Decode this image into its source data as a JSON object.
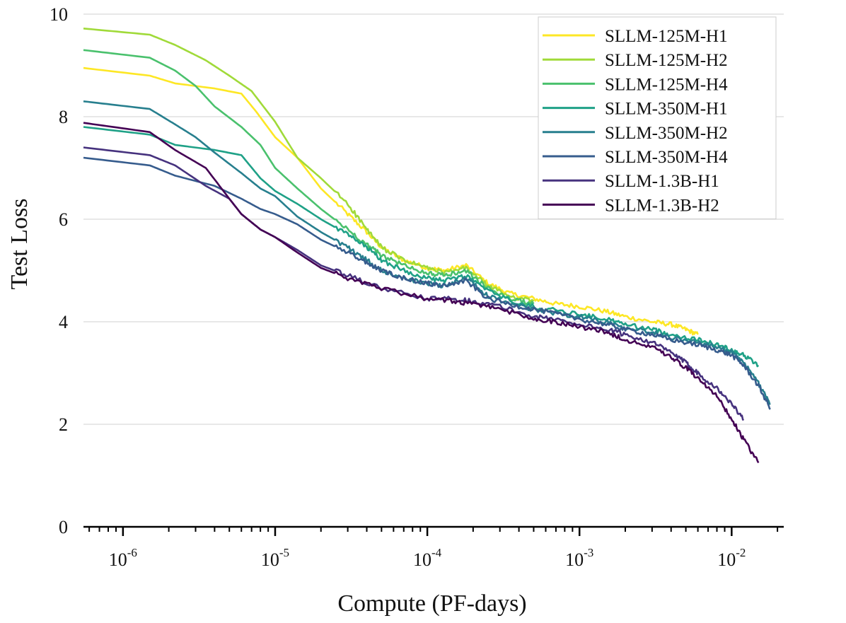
{
  "chart_data": {
    "type": "line",
    "title": "",
    "xlabel": "Compute (PF-days)",
    "ylabel": "Test Loss",
    "xscale": "log",
    "xlim": [
      5.5e-07,
      0.022
    ],
    "ylim": [
      0,
      10
    ],
    "xticks": [
      {
        "value": 1e-06,
        "base": "10",
        "exp": "-6"
      },
      {
        "value": 1e-05,
        "base": "10",
        "exp": "-5"
      },
      {
        "value": 0.0001,
        "base": "10",
        "exp": "-4"
      },
      {
        "value": 0.001,
        "base": "10",
        "exp": "-3"
      },
      {
        "value": 0.01,
        "base": "10",
        "exp": "-2"
      }
    ],
    "yticks": [
      {
        "value": 0,
        "label": "0"
      },
      {
        "value": 2,
        "label": "2"
      },
      {
        "value": 4,
        "label": "4"
      },
      {
        "value": 6,
        "label": "6"
      },
      {
        "value": 8,
        "label": "8"
      },
      {
        "value": 10,
        "label": "10"
      }
    ],
    "grid": "horizontal",
    "legend_position": "top-right",
    "series": [
      {
        "name": "SLLM-125M-H1",
        "color": "#fde725",
        "x": [
          5.5e-07,
          1.5e-06,
          2.2e-06,
          4e-06,
          6e-06,
          7.5e-06,
          1e-05,
          1.4e-05,
          2e-05,
          3e-05,
          4e-05,
          5e-05,
          7e-05,
          0.0001,
          0.00013,
          0.00018,
          0.00025,
          0.00035,
          0.0005,
          0.0007,
          0.001,
          0.0015,
          0.002,
          0.003,
          0.004,
          0.005,
          0.006
        ],
        "y": [
          8.95,
          8.8,
          8.65,
          8.55,
          8.45,
          8.1,
          7.6,
          7.2,
          6.6,
          6.1,
          5.75,
          5.45,
          5.2,
          5.05,
          5.0,
          5.1,
          4.75,
          4.55,
          4.45,
          4.35,
          4.3,
          4.2,
          4.1,
          4.0,
          3.95,
          3.85,
          3.75
        ]
      },
      {
        "name": "SLLM-125M-H2",
        "color": "#a0da39",
        "x": [
          5.5e-07,
          1.5e-06,
          2.2e-06,
          3.5e-06,
          5e-06,
          7e-06,
          1e-05,
          1.4e-05,
          2e-05,
          3e-05,
          4e-05,
          5e-05,
          7e-05,
          0.0001,
          0.00013,
          0.00018,
          0.00025,
          0.00035,
          0.0005
        ],
        "y": [
          9.72,
          9.6,
          9.4,
          9.1,
          8.8,
          8.5,
          7.9,
          7.2,
          6.8,
          6.3,
          5.8,
          5.45,
          5.2,
          5.05,
          4.95,
          5.05,
          4.7,
          4.5,
          4.4
        ]
      },
      {
        "name": "SLLM-125M-H4",
        "color": "#4ac16d",
        "x": [
          5.5e-07,
          1.5e-06,
          2.2e-06,
          3e-06,
          4e-06,
          6e-06,
          8e-06,
          1e-05,
          1.4e-05,
          2e-05,
          3e-05,
          4e-05,
          5e-05,
          7e-05,
          0.0001,
          0.00013,
          0.00018,
          0.00025,
          0.00035,
          0.0005
        ],
        "y": [
          9.3,
          9.15,
          8.9,
          8.6,
          8.2,
          7.8,
          7.45,
          7.0,
          6.6,
          6.2,
          5.8,
          5.5,
          5.3,
          5.1,
          4.95,
          4.9,
          5.0,
          4.65,
          4.45,
          4.35
        ]
      },
      {
        "name": "SLLM-350M-H1",
        "color": "#1fa187",
        "x": [
          5.5e-07,
          1.5e-06,
          2.2e-06,
          4e-06,
          6e-06,
          8e-06,
          1e-05,
          1.4e-05,
          2e-05,
          3e-05,
          4e-05,
          5e-05,
          7e-05,
          0.0001,
          0.00013,
          0.00018,
          0.00025,
          0.0004,
          0.0006,
          0.001,
          0.0015,
          0.002,
          0.003,
          0.004,
          0.006,
          0.008,
          0.01,
          0.012,
          0.015
        ],
        "y": [
          7.8,
          7.65,
          7.45,
          7.35,
          7.25,
          6.8,
          6.55,
          6.3,
          6.0,
          5.7,
          5.45,
          5.2,
          5.0,
          4.85,
          4.8,
          4.9,
          4.6,
          4.35,
          4.25,
          4.15,
          4.05,
          3.95,
          3.85,
          3.75,
          3.65,
          3.55,
          3.45,
          3.35,
          3.15
        ]
      },
      {
        "name": "SLLM-350M-H2",
        "color": "#277f8e",
        "x": [
          5.5e-07,
          1.5e-06,
          2.2e-06,
          3e-06,
          4e-06,
          6e-06,
          8e-06,
          1e-05,
          1.4e-05,
          2e-05,
          3e-05,
          4e-05,
          5e-05,
          7e-05,
          0.0001,
          0.00013,
          0.00018,
          0.00025,
          0.0004,
          0.0006,
          0.001,
          0.0015,
          0.002,
          0.003,
          0.004,
          0.006,
          0.008,
          0.01,
          0.012,
          0.015,
          0.018
        ],
        "y": [
          8.3,
          8.15,
          7.85,
          7.6,
          7.3,
          6.9,
          6.6,
          6.45,
          6.05,
          5.75,
          5.45,
          5.2,
          5.0,
          4.85,
          4.75,
          4.7,
          4.85,
          4.5,
          4.3,
          4.2,
          4.1,
          4.0,
          3.9,
          3.8,
          3.7,
          3.6,
          3.5,
          3.4,
          3.2,
          2.8,
          2.4
        ]
      },
      {
        "name": "SLLM-350M-H4",
        "color": "#365c8d",
        "x": [
          5.5e-07,
          1.5e-06,
          2.2e-06,
          4e-06,
          6e-06,
          8e-06,
          1e-05,
          1.4e-05,
          2e-05,
          3e-05,
          4e-05,
          5e-05,
          7e-05,
          0.0001,
          0.00013,
          0.00018,
          0.00025,
          0.0004,
          0.0006,
          0.001,
          0.0015,
          0.002,
          0.003,
          0.004,
          0.006,
          0.008,
          0.01,
          0.012,
          0.015,
          0.018
        ],
        "y": [
          7.2,
          7.05,
          6.85,
          6.65,
          6.4,
          6.2,
          6.1,
          5.9,
          5.6,
          5.35,
          5.15,
          5.0,
          4.85,
          4.75,
          4.7,
          4.8,
          4.45,
          4.3,
          4.2,
          4.05,
          3.95,
          3.85,
          3.75,
          3.65,
          3.55,
          3.45,
          3.35,
          3.15,
          2.75,
          2.3
        ]
      },
      {
        "name": "SLLM-1.3B-H1",
        "color": "#46327e",
        "x": [
          5.5e-07,
          1.5e-06,
          2.2e-06,
          3.5e-06,
          5e-06,
          6e-06,
          8e-06,
          1e-05,
          1.4e-05,
          2e-05,
          3e-05,
          5e-05,
          0.0001,
          0.00015,
          0.0002,
          0.0003,
          0.0005,
          0.0007,
          0.001,
          0.0015,
          0.002,
          0.003,
          0.004,
          0.005,
          0.006,
          0.008,
          0.01,
          0.012
        ],
        "y": [
          7.4,
          7.25,
          7.05,
          6.65,
          6.4,
          6.1,
          5.8,
          5.65,
          5.4,
          5.1,
          4.9,
          4.65,
          4.45,
          4.45,
          4.4,
          4.3,
          4.1,
          4.05,
          3.95,
          3.85,
          3.75,
          3.6,
          3.4,
          3.2,
          3.0,
          2.7,
          2.4,
          2.1
        ]
      },
      {
        "name": "SLLM-1.3B-H2",
        "color": "#440154",
        "x": [
          5.5e-07,
          1.5e-06,
          2.2e-06,
          3.5e-06,
          5e-06,
          6e-06,
          8e-06,
          1e-05,
          1.4e-05,
          2e-05,
          3e-05,
          5e-05,
          0.0001,
          0.00015,
          0.0002,
          0.0003,
          0.0005,
          0.0007,
          0.001,
          0.0015,
          0.002,
          0.003,
          0.004,
          0.005,
          0.006,
          0.008,
          0.01,
          0.012,
          0.015
        ],
        "y": [
          7.88,
          7.7,
          7.35,
          7.0,
          6.4,
          6.1,
          5.8,
          5.65,
          5.35,
          5.05,
          4.85,
          4.65,
          4.45,
          4.4,
          4.35,
          4.25,
          4.05,
          4.0,
          3.9,
          3.8,
          3.65,
          3.5,
          3.3,
          3.1,
          2.9,
          2.55,
          2.1,
          1.7,
          1.25
        ]
      }
    ]
  }
}
